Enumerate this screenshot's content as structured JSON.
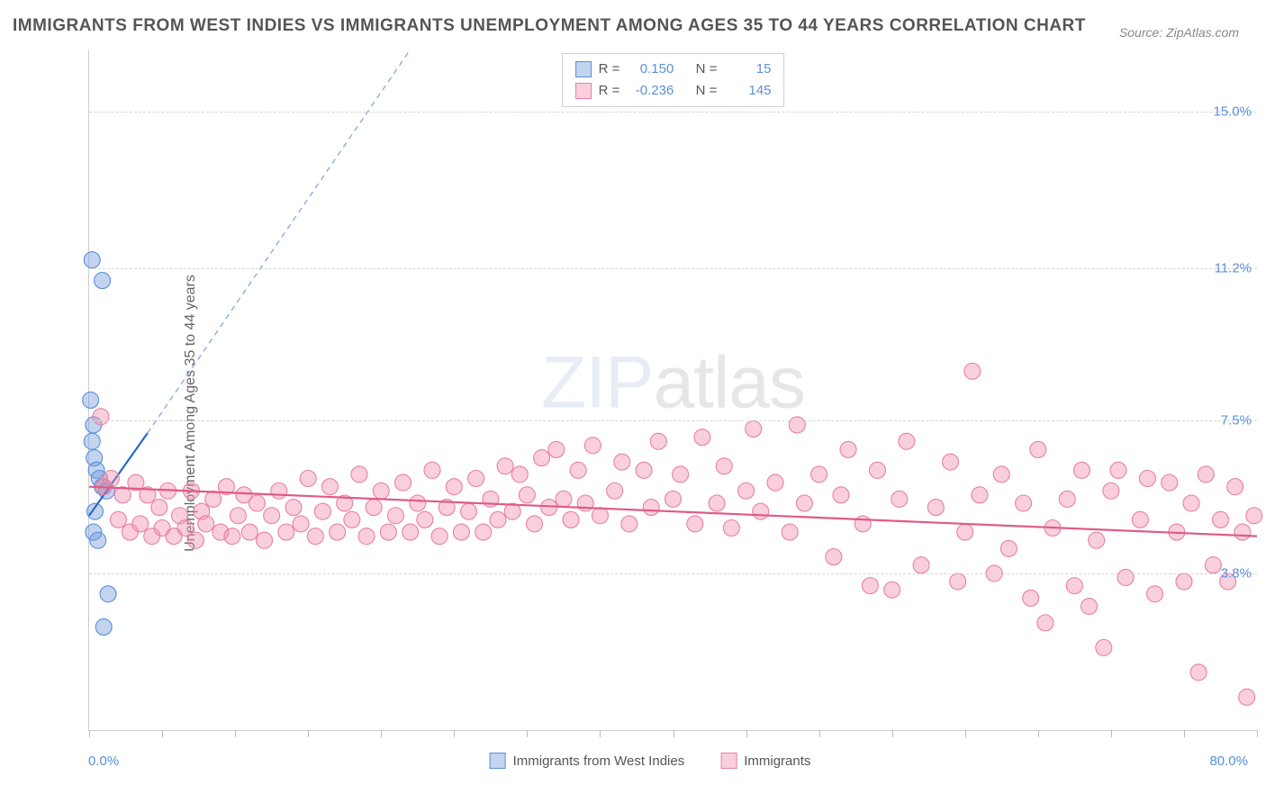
{
  "title": "IMMIGRANTS FROM WEST INDIES VS IMMIGRANTS UNEMPLOYMENT AMONG AGES 35 TO 44 YEARS CORRELATION CHART",
  "source": "Source: ZipAtlas.com",
  "watermark_zip": "ZIP",
  "watermark_tail": "atlas",
  "y_label": "Unemployment Among Ages 35 to 44 years",
  "chart": {
    "type": "scatter",
    "xlim": [
      0,
      80
    ],
    "ylim": [
      0,
      16.5
    ],
    "x_min_label": "0.0%",
    "x_max_label": "80.0%",
    "y_ticks": [
      {
        "v": 3.8,
        "label": "3.8%"
      },
      {
        "v": 7.5,
        "label": "7.5%"
      },
      {
        "v": 11.2,
        "label": "11.2%"
      },
      {
        "v": 15.0,
        "label": "15.0%"
      }
    ],
    "x_tick_positions": [
      0,
      5,
      10,
      15,
      20,
      25,
      30,
      35,
      40,
      45,
      50,
      55,
      60,
      65,
      70,
      75,
      80
    ],
    "grid_color": "#d5d5d5",
    "background_color": "#ffffff",
    "marker_radius": 9,
    "series": [
      {
        "name": "Immigrants from West Indies",
        "color_fill": "rgba(120,160,220,0.45)",
        "color_stroke": "#5b8fd9",
        "r": 0.15,
        "n": 15,
        "trend_line": {
          "x1": 0,
          "y1": 5.2,
          "x2": 4,
          "y2": 7.2,
          "color": "#2c68c4",
          "width": 2.2
        },
        "trend_extrapolate": {
          "x1": 4,
          "y1": 7.2,
          "x2": 22,
          "y2": 16.5,
          "color": "#7fa9e0",
          "dash": "6 5",
          "width": 1.3
        },
        "points": [
          [
            0.2,
            11.4
          ],
          [
            0.9,
            10.9
          ],
          [
            0.1,
            8.0
          ],
          [
            0.3,
            7.4
          ],
          [
            0.2,
            7.0
          ],
          [
            0.35,
            6.6
          ],
          [
            0.5,
            6.3
          ],
          [
            0.7,
            6.1
          ],
          [
            0.9,
            5.9
          ],
          [
            1.2,
            5.8
          ],
          [
            0.4,
            5.3
          ],
          [
            0.3,
            4.8
          ],
          [
            0.6,
            4.6
          ],
          [
            1.3,
            3.3
          ],
          [
            1.0,
            2.5
          ]
        ]
      },
      {
        "name": "Immigrants",
        "color_fill": "rgba(240,140,170,0.42)",
        "color_stroke": "#e87fa5",
        "r": -0.236,
        "n": 145,
        "trend_line": {
          "x1": 0,
          "y1": 5.9,
          "x2": 80,
          "y2": 4.7,
          "color": "#e05a88",
          "width": 2.2
        },
        "points": [
          [
            0.8,
            7.6
          ],
          [
            1.0,
            5.9
          ],
          [
            1.5,
            6.1
          ],
          [
            2.0,
            5.1
          ],
          [
            2.3,
            5.7
          ],
          [
            2.8,
            4.8
          ],
          [
            3.2,
            6.0
          ],
          [
            3.5,
            5.0
          ],
          [
            4.0,
            5.7
          ],
          [
            4.3,
            4.7
          ],
          [
            4.8,
            5.4
          ],
          [
            5.0,
            4.9
          ],
          [
            5.4,
            5.8
          ],
          [
            5.8,
            4.7
          ],
          [
            6.2,
            5.2
          ],
          [
            6.6,
            4.9
          ],
          [
            7.0,
            5.8
          ],
          [
            7.3,
            4.6
          ],
          [
            7.7,
            5.3
          ],
          [
            8.0,
            5.0
          ],
          [
            8.5,
            5.6
          ],
          [
            9.0,
            4.8
          ],
          [
            9.4,
            5.9
          ],
          [
            9.8,
            4.7
          ],
          [
            10.2,
            5.2
          ],
          [
            10.6,
            5.7
          ],
          [
            11.0,
            4.8
          ],
          [
            11.5,
            5.5
          ],
          [
            12.0,
            4.6
          ],
          [
            12.5,
            5.2
          ],
          [
            13.0,
            5.8
          ],
          [
            13.5,
            4.8
          ],
          [
            14.0,
            5.4
          ],
          [
            14.5,
            5.0
          ],
          [
            15.0,
            6.1
          ],
          [
            15.5,
            4.7
          ],
          [
            16.0,
            5.3
          ],
          [
            16.5,
            5.9
          ],
          [
            17.0,
            4.8
          ],
          [
            17.5,
            5.5
          ],
          [
            18.0,
            5.1
          ],
          [
            18.5,
            6.2
          ],
          [
            19.0,
            4.7
          ],
          [
            19.5,
            5.4
          ],
          [
            20.0,
            5.8
          ],
          [
            20.5,
            4.8
          ],
          [
            21.0,
            5.2
          ],
          [
            21.5,
            6.0
          ],
          [
            22.0,
            4.8
          ],
          [
            22.5,
            5.5
          ],
          [
            23.0,
            5.1
          ],
          [
            23.5,
            6.3
          ],
          [
            24.0,
            4.7
          ],
          [
            24.5,
            5.4
          ],
          [
            25.0,
            5.9
          ],
          [
            25.5,
            4.8
          ],
          [
            26.0,
            5.3
          ],
          [
            26.5,
            6.1
          ],
          [
            27.0,
            4.8
          ],
          [
            27.5,
            5.6
          ],
          [
            28.0,
            5.1
          ],
          [
            28.5,
            6.4
          ],
          [
            29.0,
            5.3
          ],
          [
            29.5,
            6.2
          ],
          [
            30.0,
            5.7
          ],
          [
            30.5,
            5.0
          ],
          [
            31.0,
            6.6
          ],
          [
            31.5,
            5.4
          ],
          [
            32.0,
            6.8
          ],
          [
            32.5,
            5.6
          ],
          [
            33.0,
            5.1
          ],
          [
            33.5,
            6.3
          ],
          [
            34.0,
            5.5
          ],
          [
            34.5,
            6.9
          ],
          [
            35.0,
            5.2
          ],
          [
            36.0,
            5.8
          ],
          [
            36.5,
            6.5
          ],
          [
            37.0,
            5.0
          ],
          [
            38.0,
            6.3
          ],
          [
            38.5,
            5.4
          ],
          [
            39.0,
            7.0
          ],
          [
            40.0,
            5.6
          ],
          [
            40.5,
            6.2
          ],
          [
            41.5,
            5.0
          ],
          [
            42.0,
            7.1
          ],
          [
            43.0,
            5.5
          ],
          [
            43.5,
            6.4
          ],
          [
            44.0,
            4.9
          ],
          [
            45.0,
            5.8
          ],
          [
            45.5,
            7.3
          ],
          [
            46.0,
            5.3
          ],
          [
            47.0,
            6.0
          ],
          [
            48.0,
            4.8
          ],
          [
            48.5,
            7.4
          ],
          [
            49.0,
            5.5
          ],
          [
            50.0,
            6.2
          ],
          [
            51.0,
            4.2
          ],
          [
            51.5,
            5.7
          ],
          [
            52.0,
            6.8
          ],
          [
            53.0,
            5.0
          ],
          [
            53.5,
            3.5
          ],
          [
            54.0,
            6.3
          ],
          [
            55.0,
            3.4
          ],
          [
            55.5,
            5.6
          ],
          [
            56.0,
            7.0
          ],
          [
            57.0,
            4.0
          ],
          [
            58.0,
            5.4
          ],
          [
            59.0,
            6.5
          ],
          [
            59.5,
            3.6
          ],
          [
            60.0,
            4.8
          ],
          [
            60.5,
            8.7
          ],
          [
            61.0,
            5.7
          ],
          [
            62.0,
            3.8
          ],
          [
            62.5,
            6.2
          ],
          [
            63.0,
            4.4
          ],
          [
            64.0,
            5.5
          ],
          [
            64.5,
            3.2
          ],
          [
            65.0,
            6.8
          ],
          [
            65.5,
            2.6
          ],
          [
            66.0,
            4.9
          ],
          [
            67.0,
            5.6
          ],
          [
            67.5,
            3.5
          ],
          [
            68.0,
            6.3
          ],
          [
            68.5,
            3.0
          ],
          [
            69.0,
            4.6
          ],
          [
            69.5,
            2.0
          ],
          [
            70.0,
            5.8
          ],
          [
            70.5,
            6.3
          ],
          [
            71.0,
            3.7
          ],
          [
            72.0,
            5.1
          ],
          [
            72.5,
            6.1
          ],
          [
            73.0,
            3.3
          ],
          [
            74.0,
            6.0
          ],
          [
            74.5,
            4.8
          ],
          [
            75.0,
            3.6
          ],
          [
            75.5,
            5.5
          ],
          [
            76.0,
            1.4
          ],
          [
            76.5,
            6.2
          ],
          [
            77.0,
            4.0
          ],
          [
            77.5,
            5.1
          ],
          [
            78.0,
            3.6
          ],
          [
            78.5,
            5.9
          ],
          [
            79.0,
            4.8
          ],
          [
            79.3,
            0.8
          ],
          [
            79.8,
            5.2
          ]
        ]
      }
    ]
  },
  "legend_top": {
    "r_label": "R =",
    "n_label": "N ="
  },
  "legend_bottom": [
    "Immigrants from West Indies",
    "Immigrants"
  ]
}
